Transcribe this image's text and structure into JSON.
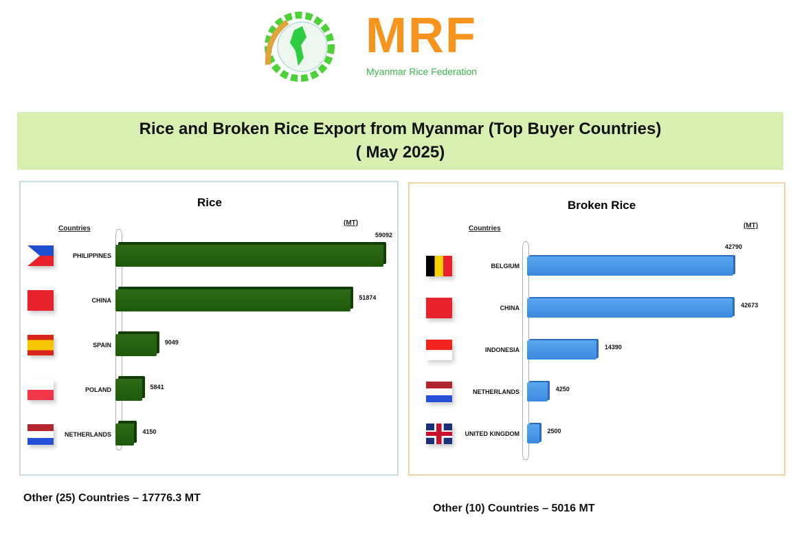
{
  "logo": {
    "text": "MRF",
    "subtitle": "Myanmar Rice Federation"
  },
  "banner": {
    "title": "Rice and Broken Rice Export from Myanmar (Top Buyer Countries)",
    "subtitle": "( May 2025)"
  },
  "colors": {
    "rice_bar": "#1d5a0c",
    "broken_bar": "#3a8ae0",
    "banner": "#d7efb1",
    "logo_orange": "#f7941d",
    "logo_green": "#3bb54a"
  },
  "chart_data": [
    {
      "type": "bar",
      "orientation": "horizontal",
      "title": "Rice",
      "xlabel": "(MT)",
      "ylabel": "Countries",
      "categories": [
        "PHILIPPINES",
        "CHINA",
        "SPAIN",
        "POLAND",
        "NETHERLANDS"
      ],
      "flags": [
        "philippines",
        "china",
        "spain",
        "poland",
        "netherlands"
      ],
      "values": [
        59092,
        51874,
        9049,
        5841,
        4150
      ],
      "labels": [
        "59092",
        "51874",
        "9049",
        "5841",
        "4150"
      ],
      "grid": false
    },
    {
      "type": "bar",
      "orientation": "horizontal",
      "title": "Broken Rice",
      "xlabel": "(MT)",
      "ylabel": "Countries",
      "categories": [
        "BELGIUM",
        "CHINA",
        "INDONESIA",
        "NETHERLANDS",
        "UNITED KINGDOM"
      ],
      "flags": [
        "belgium",
        "china",
        "indonesia",
        "netherlands",
        "united-kingdom"
      ],
      "values": [
        42790,
        42673,
        14390,
        4250,
        2500
      ],
      "labels": [
        "42790",
        "42673",
        "14390",
        "4250",
        "2500"
      ],
      "grid": false
    }
  ],
  "notes": {
    "rice_other": "Other (25) Countries –  17776.3 MT",
    "broken_other": "Other (10) Countries –  5016 MT"
  }
}
